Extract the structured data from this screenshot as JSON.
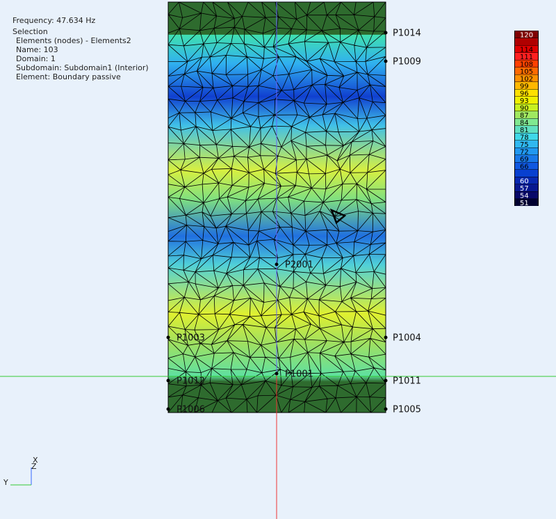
{
  "info": {
    "frequency": "Frequency: 47.634 Hz",
    "selection": "Selection",
    "lines": [
      "Elements (nodes) - Elements2",
      "Name:  103",
      "Domain: 1",
      "Subdomain: Subdomain1  (Interior)",
      "Element: Boundary passive"
    ]
  },
  "points": [
    "P1014",
    "P1009",
    "P1004",
    "P1011",
    "P1005",
    "P2001",
    "P1003",
    "P1001",
    "P1012",
    "P1006"
  ],
  "colorbar": {
    "labels": [
      120,
      null,
      114,
      111,
      108,
      105,
      102,
      99,
      96,
      93,
      90,
      87,
      84,
      81,
      78,
      75,
      72,
      69,
      66,
      null,
      60,
      57,
      54,
      51
    ],
    "colors": [
      "#800000",
      "#b00000",
      "#e00000",
      "#ff2020",
      "#ff4000",
      "#ff6a00",
      "#ff9000",
      "#ffb800",
      "#ffe000",
      "#f0f000",
      "#c8f020",
      "#a0e860",
      "#80e890",
      "#60e0c0",
      "#40d8e8",
      "#30b8f0",
      "#2098f0",
      "#1878e8",
      "#1058e0",
      "#0840d0",
      "#0828b0",
      "#081890",
      "#080868",
      "#000030"
    ]
  },
  "axes": {
    "x": "X",
    "y": "Y",
    "z": "Z"
  }
}
